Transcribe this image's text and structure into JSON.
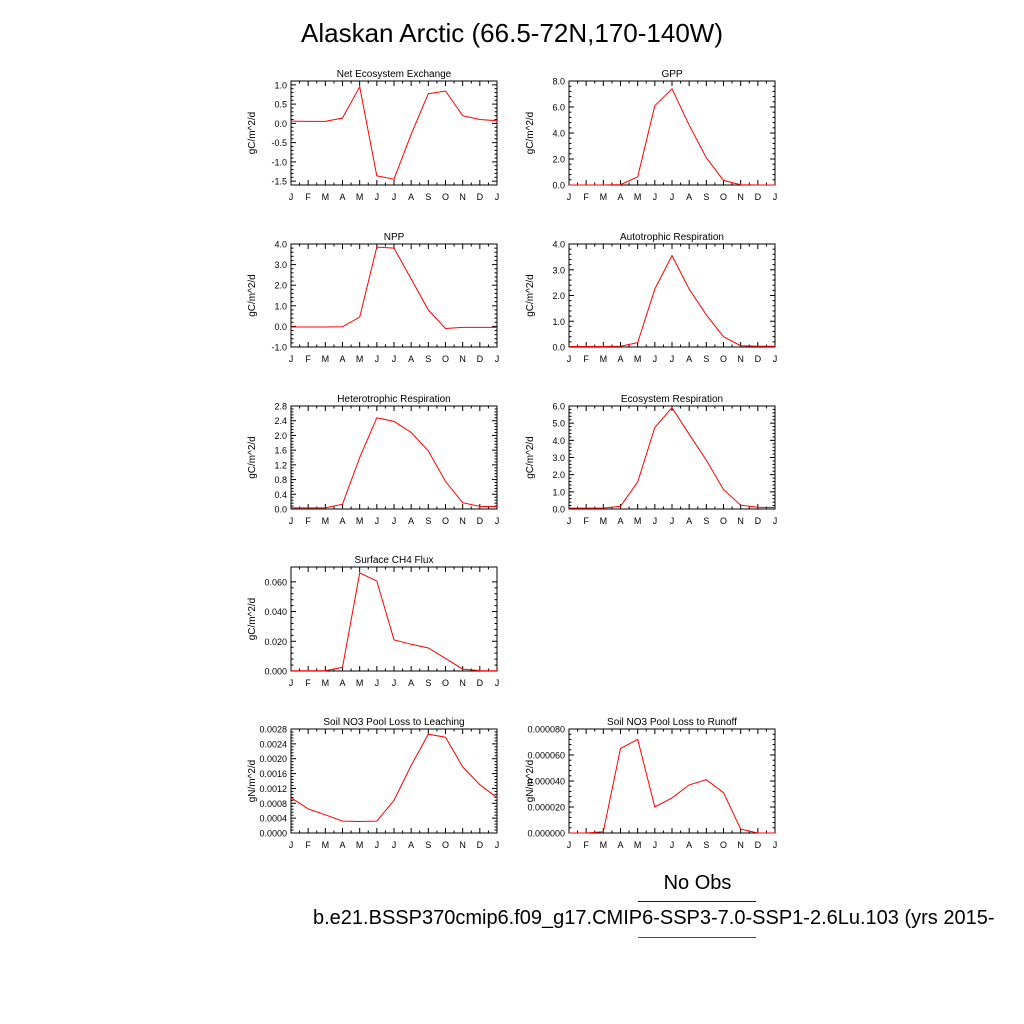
{
  "page": {
    "title": "Alaskan Arctic (66.5-72N,170-140W)",
    "legend": {
      "obs_label": "No Obs",
      "obs_color": "#0000ff",
      "run_label": "b.e21.BSSP370cmip6.f09_g17.CMIP6-SSP3-7.0-SSP1-2.6Lu.103 (yrs 2015-",
      "run_color": "#ff0000"
    }
  },
  "chart_data": [
    {
      "type": "line",
      "title": "Net Ecosystem Exchange",
      "ylabel": "gC/m^2/d",
      "x": [
        "J",
        "F",
        "M",
        "A",
        "M",
        "J",
        "J",
        "A",
        "S",
        "O",
        "N",
        "D",
        "J"
      ],
      "ylim": [
        -1.6,
        1.1
      ],
      "yticks": [
        -1.5,
        -1.0,
        -0.5,
        0.0,
        0.5,
        1.0
      ],
      "yticklabels": [
        "-1.5",
        "-1.0",
        "-0.5",
        "0.0",
        "0.5",
        "1.0"
      ],
      "series": [
        {
          "values": [
            0.06,
            0.05,
            0.05,
            0.14,
            0.95,
            -1.36,
            -1.45,
            -0.28,
            0.77,
            0.84,
            0.2,
            0.1,
            0.07
          ]
        }
      ]
    },
    {
      "type": "line",
      "title": "GPP",
      "ylabel": "gC/m^2/d",
      "x": [
        "J",
        "F",
        "M",
        "A",
        "M",
        "J",
        "J",
        "A",
        "S",
        "O",
        "N",
        "D",
        "J"
      ],
      "ylim": [
        0,
        8
      ],
      "yticks": [
        0,
        2,
        4,
        6,
        8
      ],
      "yticklabels": [
        "0.0",
        "2.0",
        "4.0",
        "6.0",
        "8.0"
      ],
      "series": [
        {
          "values": [
            0.0,
            0.0,
            0.0,
            0.03,
            0.62,
            6.1,
            7.4,
            4.6,
            2.1,
            0.35,
            0.02,
            0.0,
            0.0
          ]
        }
      ]
    },
    {
      "type": "line",
      "title": "NPP",
      "ylabel": "gC/m^2/d",
      "x": [
        "J",
        "F",
        "M",
        "A",
        "M",
        "J",
        "J",
        "A",
        "S",
        "O",
        "N",
        "D",
        "J"
      ],
      "ylim": [
        -1,
        4
      ],
      "yticks": [
        -1,
        0,
        1,
        2,
        3,
        4
      ],
      "yticklabels": [
        "-1.0",
        "0.0",
        "1.0",
        "2.0",
        "3.0",
        "4.0"
      ],
      "series": [
        {
          "values": [
            -0.03,
            -0.03,
            -0.03,
            -0.02,
            0.45,
            3.85,
            3.8,
            2.3,
            0.8,
            -0.1,
            -0.05,
            -0.05,
            -0.05
          ]
        }
      ]
    },
    {
      "type": "line",
      "title": "Autotrophic Respiration",
      "ylabel": "gC/m^2/d",
      "x": [
        "J",
        "F",
        "M",
        "A",
        "M",
        "J",
        "J",
        "A",
        "S",
        "O",
        "N",
        "D",
        "J"
      ],
      "ylim": [
        0,
        4
      ],
      "yticks": [
        0,
        1,
        2,
        3,
        4
      ],
      "yticklabels": [
        "0.0",
        "1.0",
        "2.0",
        "3.0",
        "4.0"
      ],
      "series": [
        {
          "values": [
            0.02,
            0.02,
            0.02,
            0.03,
            0.17,
            2.25,
            3.55,
            2.25,
            1.25,
            0.4,
            0.05,
            0.03,
            0.03
          ]
        }
      ]
    },
    {
      "type": "line",
      "title": "Heterotrophic Respiration",
      "ylabel": "gC/m^2/d",
      "x": [
        "J",
        "F",
        "M",
        "A",
        "M",
        "J",
        "J",
        "A",
        "S",
        "O",
        "N",
        "D",
        "J"
      ],
      "ylim": [
        0,
        2.8
      ],
      "yticks": [
        0,
        0.4,
        0.8,
        1.2,
        1.6,
        2.0,
        2.4,
        2.8
      ],
      "yticklabels": [
        "0.0",
        "0.4",
        "0.8",
        "1.2",
        "1.6",
        "2.0",
        "2.4",
        "2.8"
      ],
      "series": [
        {
          "values": [
            0.03,
            0.03,
            0.03,
            0.13,
            1.4,
            2.48,
            2.38,
            2.08,
            1.58,
            0.75,
            0.17,
            0.07,
            0.06
          ]
        }
      ]
    },
    {
      "type": "line",
      "title": "Ecosystem Respiration",
      "ylabel": "gC/m^2/d",
      "x": [
        "J",
        "F",
        "M",
        "A",
        "M",
        "J",
        "J",
        "A",
        "S",
        "O",
        "N",
        "D",
        "J"
      ],
      "ylim": [
        0,
        6
      ],
      "yticks": [
        0,
        1,
        2,
        3,
        4,
        5,
        6
      ],
      "yticklabels": [
        "0.0",
        "1.0",
        "2.0",
        "3.0",
        "4.0",
        "5.0",
        "6.0"
      ],
      "series": [
        {
          "values": [
            0.05,
            0.05,
            0.05,
            0.16,
            1.57,
            4.75,
            5.9,
            4.35,
            2.85,
            1.13,
            0.22,
            0.1,
            0.09
          ]
        }
      ]
    },
    {
      "type": "line",
      "title": "Surface CH4 Flux",
      "ylabel": "gC/m^2/d",
      "x": [
        "J",
        "F",
        "M",
        "A",
        "M",
        "J",
        "J",
        "A",
        "S",
        "O",
        "N",
        "D",
        "J"
      ],
      "ylim": [
        0,
        0.07
      ],
      "yticks": [
        0,
        0.02,
        0.04,
        0.06
      ],
      "yticklabels": [
        "0.000",
        "0.020",
        "0.040",
        "0.060"
      ],
      "series": [
        {
          "values": [
            0.0002,
            0.0002,
            0.0002,
            0.0025,
            0.066,
            0.0605,
            0.021,
            0.018,
            0.0155,
            0.0085,
            0.0013,
            0.0003,
            0.0002
          ]
        }
      ]
    },
    {
      "type": "line",
      "title": "Soil NO3 Pool Loss to Leaching",
      "ylabel": "gN/m^2/d",
      "x": [
        "J",
        "F",
        "M",
        "A",
        "M",
        "J",
        "J",
        "A",
        "S",
        "O",
        "N",
        "D",
        "J"
      ],
      "ylim": [
        0,
        0.0028
      ],
      "yticks": [
        0,
        0.0004,
        0.0008,
        0.0012,
        0.0016,
        0.002,
        0.0024,
        0.0028
      ],
      "yticklabels": [
        "0.0000",
        "0.0004",
        "0.0008",
        "0.0012",
        "0.0016",
        "0.0020",
        "0.0024",
        "0.0028"
      ],
      "series": [
        {
          "values": [
            0.00095,
            0.00065,
            0.00049,
            0.00032,
            0.00031,
            0.00032,
            0.00088,
            0.00182,
            0.00266,
            0.00258,
            0.00178,
            0.0013,
            0.00095
          ]
        }
      ]
    },
    {
      "type": "line",
      "title": "Soil NO3 Pool Loss to Runoff",
      "ylabel": "gN/m^2/d",
      "x": [
        "J",
        "F",
        "M",
        "A",
        "M",
        "J",
        "J",
        "A",
        "S",
        "O",
        "N",
        "D",
        "J"
      ],
      "ylim": [
        0,
        8e-05
      ],
      "yticks": [
        0,
        2e-05,
        4e-05,
        6e-05,
        8e-05
      ],
      "yticklabels": [
        "0.000000",
        "0.000020",
        "0.000040",
        "0.000060",
        "0.000080"
      ],
      "series": [
        {
          "values": [
            0.0,
            0.0,
            1e-06,
            6.5e-05,
            7.2e-05,
            2e-05,
            2.7e-05,
            3.7e-05,
            4.1e-05,
            3.1e-05,
            3e-06,
            0.0,
            0.0
          ]
        }
      ]
    }
  ]
}
